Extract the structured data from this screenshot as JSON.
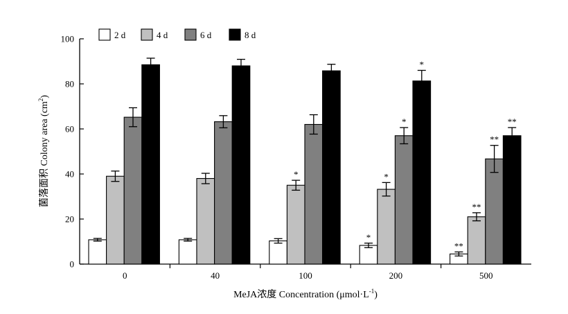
{
  "chart_data": {
    "type": "bar",
    "title": "",
    "xlabel": "MeJA浓度 Concentration (μmol·L",
    "xlabel_sup": "-1",
    "xlabel_end": ")",
    "ylabel": "菌落面积 Colony area (cm",
    "ylabel_sup": "2",
    "ylabel_end": ")",
    "ylim": [
      0,
      100
    ],
    "yticks": [
      "0",
      "20",
      "40",
      "60",
      "80",
      "100"
    ],
    "categories": [
      "0",
      "40",
      "100",
      "200",
      "500"
    ],
    "legend_position": "top-left",
    "grid": false,
    "series": [
      {
        "name": "2 d",
        "color": "#ffffff",
        "values": [
          10.8,
          10.8,
          10.3,
          8.3,
          4.5
        ],
        "errors": [
          0.6,
          0.6,
          1.0,
          1.0,
          0.9
        ],
        "marks": [
          "",
          "",
          "",
          "*",
          "**"
        ]
      },
      {
        "name": "4 d",
        "color": "#c0c0c0",
        "values": [
          39.0,
          38.0,
          35.0,
          33.2,
          21.0
        ],
        "errors": [
          2.3,
          2.3,
          2.2,
          3.0,
          1.8
        ],
        "marks": [
          "",
          "",
          "*",
          "*",
          "**"
        ]
      },
      {
        "name": "6 d",
        "color": "#808080",
        "values": [
          65.2,
          63.2,
          62.0,
          57.0,
          46.7
        ],
        "errors": [
          4.2,
          2.7,
          4.3,
          3.6,
          6.0
        ],
        "marks": [
          "",
          "",
          "",
          "*",
          "**"
        ]
      },
      {
        "name": "8 d",
        "color": "#000000",
        "values": [
          88.5,
          88.0,
          85.8,
          81.3,
          57.0
        ],
        "errors": [
          2.9,
          2.9,
          2.9,
          4.7,
          3.6
        ],
        "marks": [
          "",
          "",
          "",
          "*",
          "**"
        ]
      }
    ]
  }
}
